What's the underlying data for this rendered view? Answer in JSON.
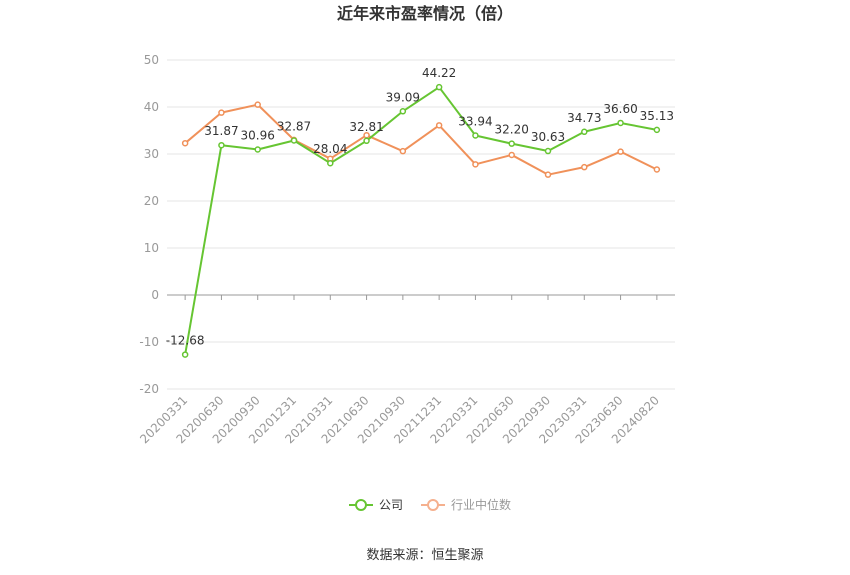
{
  "chart_data": {
    "type": "line",
    "title": "近年来市盈率情况（倍）",
    "categories": [
      "20200331",
      "20200630",
      "20200930",
      "20201231",
      "20210331",
      "20210630",
      "20210930",
      "20211231",
      "20220331",
      "20220630",
      "20220930",
      "20230331",
      "20230630",
      "20240820"
    ],
    "series": [
      {
        "name": "公司",
        "color": "#66c532",
        "values": [
          -12.68,
          31.87,
          30.96,
          32.87,
          28.04,
          32.81,
          39.09,
          44.22,
          33.94,
          32.2,
          30.63,
          34.73,
          36.6,
          35.13
        ],
        "labels": [
          "-12.68",
          "31.87",
          "30.96",
          "32.87",
          "28.04",
          "32.81",
          "39.09",
          "44.22",
          "33.94",
          "32.20",
          "30.63",
          "34.73",
          "36.60",
          "35.13"
        ]
      },
      {
        "name": "行业中位数",
        "color": "#f0915a",
        "values": [
          32.3,
          38.8,
          40.5,
          33.0,
          29.0,
          34.0,
          30.6,
          36.1,
          27.8,
          29.8,
          25.6,
          27.2,
          30.5,
          26.7
        ]
      }
    ],
    "ylim": [
      -20,
      50
    ],
    "yticks": [
      "-20",
      "-10",
      "0",
      "10",
      "20",
      "30",
      "40",
      "50"
    ],
    "grid": true,
    "legend": "bottom-center"
  },
  "source": "数据来源：恒生聚源"
}
